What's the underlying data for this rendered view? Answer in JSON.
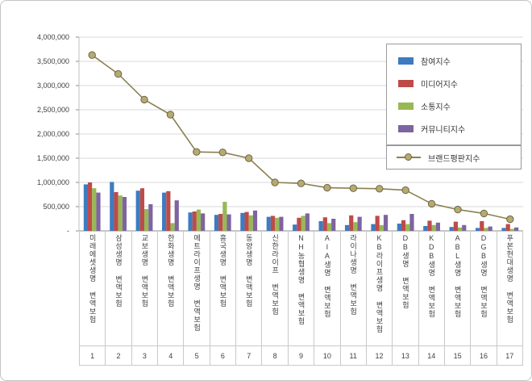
{
  "chart_data": {
    "type": "bar",
    "title": "",
    "xlabel": "",
    "ylabel": "",
    "ylim": [
      0,
      4000000
    ],
    "grid": true,
    "legend_position": "top-right",
    "categories": [
      "미래에셋생명 변액보험",
      "삼성생명 변액보험",
      "교보생명 변액보험",
      "한화생명 변액보험",
      "메트라이프생명 변액보험",
      "흥국생명 변액보험",
      "동양생명 변액보험",
      "신한라이프 변액보험",
      "NH농협생명 변액보험",
      "AIA생명 변액보험",
      "라이나생명 변액보험",
      "KB라이프생명 변액보험",
      "DB생명 변액보험",
      "KDB생명 변액보험",
      "ABL생명 변액보험",
      "DGB생명 변액보험",
      "푸본현대생명 변액보험"
    ],
    "rank_labels": [
      "1",
      "2",
      "3",
      "4",
      "5",
      "6",
      "7",
      "8",
      "9",
      "10",
      "11",
      "12",
      "13",
      "14",
      "15",
      "16",
      "17"
    ],
    "series": [
      {
        "name": "참여지수",
        "color": "#3e7bc0",
        "values": [
          960000,
          1010000,
          830000,
          790000,
          380000,
          330000,
          370000,
          290000,
          130000,
          200000,
          120000,
          140000,
          150000,
          100000,
          80000,
          60000,
          60000
        ]
      },
      {
        "name": "미디어지수",
        "color": "#be4b48",
        "values": [
          1000000,
          800000,
          880000,
          820000,
          400000,
          350000,
          390000,
          310000,
          270000,
          280000,
          320000,
          310000,
          220000,
          210000,
          190000,
          200000,
          140000
        ]
      },
      {
        "name": "소통지수",
        "color": "#98b855",
        "values": [
          880000,
          730000,
          450000,
          160000,
          440000,
          600000,
          320000,
          270000,
          310000,
          160000,
          180000,
          120000,
          140000,
          120000,
          70000,
          60000,
          40000
        ]
      },
      {
        "name": "커뮤니티지수",
        "color": "#7e64a0",
        "values": [
          790000,
          700000,
          550000,
          630000,
          360000,
          340000,
          420000,
          290000,
          360000,
          250000,
          290000,
          330000,
          350000,
          170000,
          120000,
          90000,
          70000
        ]
      }
    ],
    "line_series": {
      "name": "브랜드평판지수",
      "line_color": "#8a8050",
      "marker_fill": "#b5ab72",
      "marker_stroke": "#6e6544",
      "values": [
        3630000,
        3240000,
        2710000,
        2400000,
        1630000,
        1620000,
        1500000,
        1000000,
        980000,
        890000,
        880000,
        870000,
        840000,
        560000,
        440000,
        360000,
        240000
      ]
    },
    "y_ticks": [
      {
        "value": 4000000,
        "label": "4,000,000"
      },
      {
        "value": 3500000,
        "label": "3,500,000"
      },
      {
        "value": 3000000,
        "label": "3,000,000"
      },
      {
        "value": 2500000,
        "label": "2,500,000"
      },
      {
        "value": 2000000,
        "label": "2,000,000"
      },
      {
        "value": 1500000,
        "label": "1,500,000"
      },
      {
        "value": 1000000,
        "label": "1,000,000"
      },
      {
        "value": 500000,
        "label": "500,000"
      },
      {
        "value": 0,
        "label": "-"
      }
    ]
  }
}
